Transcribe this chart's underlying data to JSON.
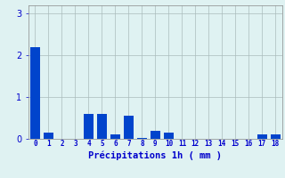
{
  "values": [
    2.2,
    0.15,
    0.0,
    0.0,
    0.6,
    0.6,
    0.1,
    0.55,
    0.03,
    0.2,
    0.15,
    0.0,
    0.0,
    0.0,
    0.0,
    0.0,
    0.0,
    0.1,
    0.1
  ],
  "categories": [
    0,
    1,
    2,
    3,
    4,
    5,
    6,
    7,
    8,
    9,
    10,
    11,
    12,
    13,
    14,
    15,
    16,
    17,
    18
  ],
  "bar_color": "#0044cc",
  "background_color": "#dff2f2",
  "grid_color": "#aabcbc",
  "xlabel": "Précipitations 1h ( mm )",
  "xlabel_color": "#0000cc",
  "tick_color": "#0000cc",
  "ylim": [
    0,
    3.2
  ],
  "yticks": [
    0,
    1,
    2,
    3
  ],
  "bar_width": 0.75
}
